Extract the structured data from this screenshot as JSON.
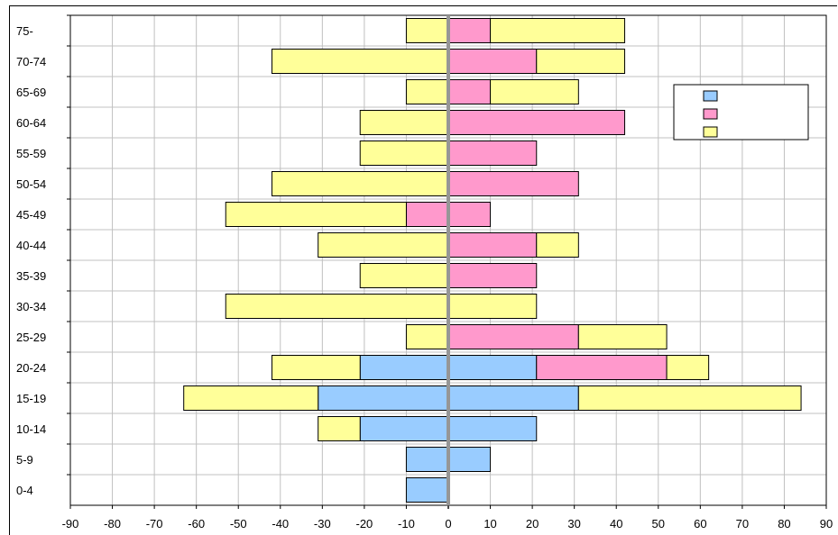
{
  "chart_data": {
    "type": "bar",
    "orientation": "horizontal-stacked-population-pyramid",
    "categories": [
      "0-4",
      "5-9",
      "10-14",
      "15-19",
      "20-24",
      "25-29",
      "30-34",
      "35-39",
      "40-44",
      "45-49",
      "50-54",
      "55-59",
      "60-64",
      "65-69",
      "70-74",
      "75-"
    ],
    "series": [
      {
        "color": "#99ccff",
        "left": [
          -10,
          -10,
          -21,
          -31,
          -21,
          0,
          0,
          0,
          0,
          0,
          0,
          0,
          0,
          0,
          0,
          0
        ],
        "right": [
          0,
          10,
          21,
          31,
          21,
          0,
          0,
          0,
          0,
          0,
          0,
          0,
          0,
          0,
          0,
          0
        ]
      },
      {
        "color": "#ff99cc",
        "left": [
          0,
          0,
          0,
          0,
          0,
          0,
          0,
          0,
          0,
          -10,
          0,
          0,
          0,
          0,
          0,
          0
        ],
        "right": [
          0,
          0,
          0,
          0,
          31,
          31,
          0,
          21,
          21,
          10,
          31,
          21,
          42,
          10,
          21,
          10
        ]
      },
      {
        "color": "#ffff99",
        "left": [
          0,
          0,
          -10,
          -32,
          -21,
          -10,
          -53,
          -21,
          -31,
          -43,
          -42,
          -21,
          -21,
          -10,
          -42,
          -10
        ],
        "right": [
          0,
          0,
          0,
          53,
          10,
          21,
          21,
          0,
          10,
          0,
          0,
          0,
          0,
          21,
          21,
          32
        ]
      }
    ],
    "xlim": [
      -90,
      90
    ],
    "xticks": [
      "-90",
      "-80",
      "-70",
      "-60",
      "-50",
      "-40",
      "-30",
      "-20",
      "-10",
      "0",
      "10",
      "20",
      "30",
      "40",
      "50",
      "60",
      "70",
      "80",
      "90"
    ],
    "grid": true,
    "legend": "top-right",
    "legend_entries": [
      "",
      "",
      ""
    ]
  }
}
